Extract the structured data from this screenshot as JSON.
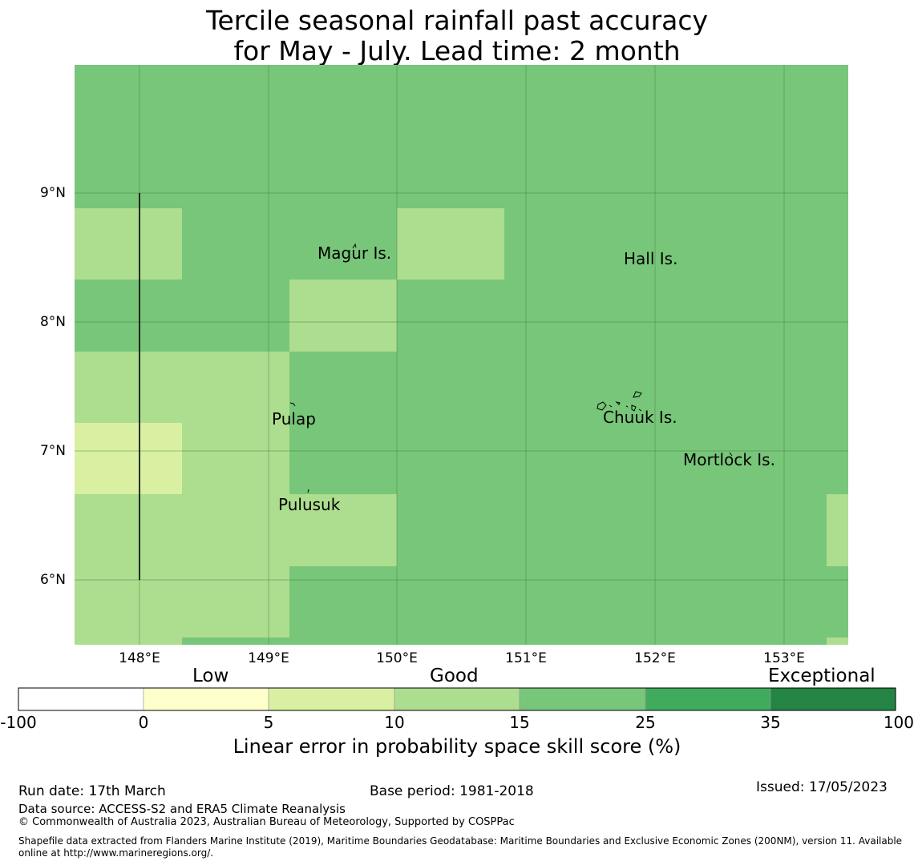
{
  "title": {
    "line1": "Tercile seasonal rainfall past accuracy",
    "line2": "for May - July. Lead time: 2 month"
  },
  "map": {
    "lat_labels": [
      "9°N",
      "8°N",
      "7°N",
      "6°N"
    ],
    "lon_labels": [
      "148°E",
      "149°E",
      "150°E",
      "151°E",
      "152°E",
      "153°E"
    ],
    "extent": {
      "lon_min": 147.5,
      "lon_max": 153.5,
      "lat_min": 5.5,
      "lat_max": 10.0
    },
    "grid_values_note": "skill score category per cell",
    "places": [
      {
        "name": "Magur Is.",
        "lon": 149.67,
        "lat": 8.6
      },
      {
        "name": "Hall Is.",
        "lon": 151.97,
        "lat": 8.55
      },
      {
        "name": "Pulap",
        "lon": 149.2,
        "lat": 7.35
      },
      {
        "name": "Chuuk Is.",
        "lon": 151.85,
        "lat": 7.4
      },
      {
        "name": "Mortlock Is.",
        "lon": 152.6,
        "lat": 7.0
      },
      {
        "name": "Pulusuk",
        "lon": 149.3,
        "lat": 6.7
      }
    ],
    "colors": {
      "good_dark": "#78c679",
      "good_light": "#addd8e",
      "low": "#d9f0a3"
    }
  },
  "colorbar": {
    "categories": [
      "Low",
      "Good",
      "Exceptional"
    ],
    "ticks": [
      "-100",
      "0",
      "5",
      "10",
      "15",
      "25",
      "35",
      "100"
    ],
    "segment_colors": [
      "#ffffff",
      "#ffffcc",
      "#d9f0a3",
      "#addd8e",
      "#78c679",
      "#41ab5d",
      "#238443"
    ],
    "title": "Linear error in probability space skill score (%)"
  },
  "footer": {
    "run_date": "Run date: 17th March",
    "base_period": "Base period: 1981-2018",
    "issued": "Issued: 17/05/2023",
    "data_source": "Data source: ACCESS-S2 and ERA5 Climate Reanalysis",
    "copyright": "© Commonwealth of Australia 2023, Australian Bureau of Meteorology, Supported by COSPPac",
    "shapefile_line1": "Shapefile data extracted from Flanders Marine Institute (2019), Maritime Boundaries Geodatabase: Maritime Boundaries and Exclusive Economic Zones (200NM), version 11. Available",
    "shapefile_line2": "online at http://www.marineregions.org/."
  }
}
